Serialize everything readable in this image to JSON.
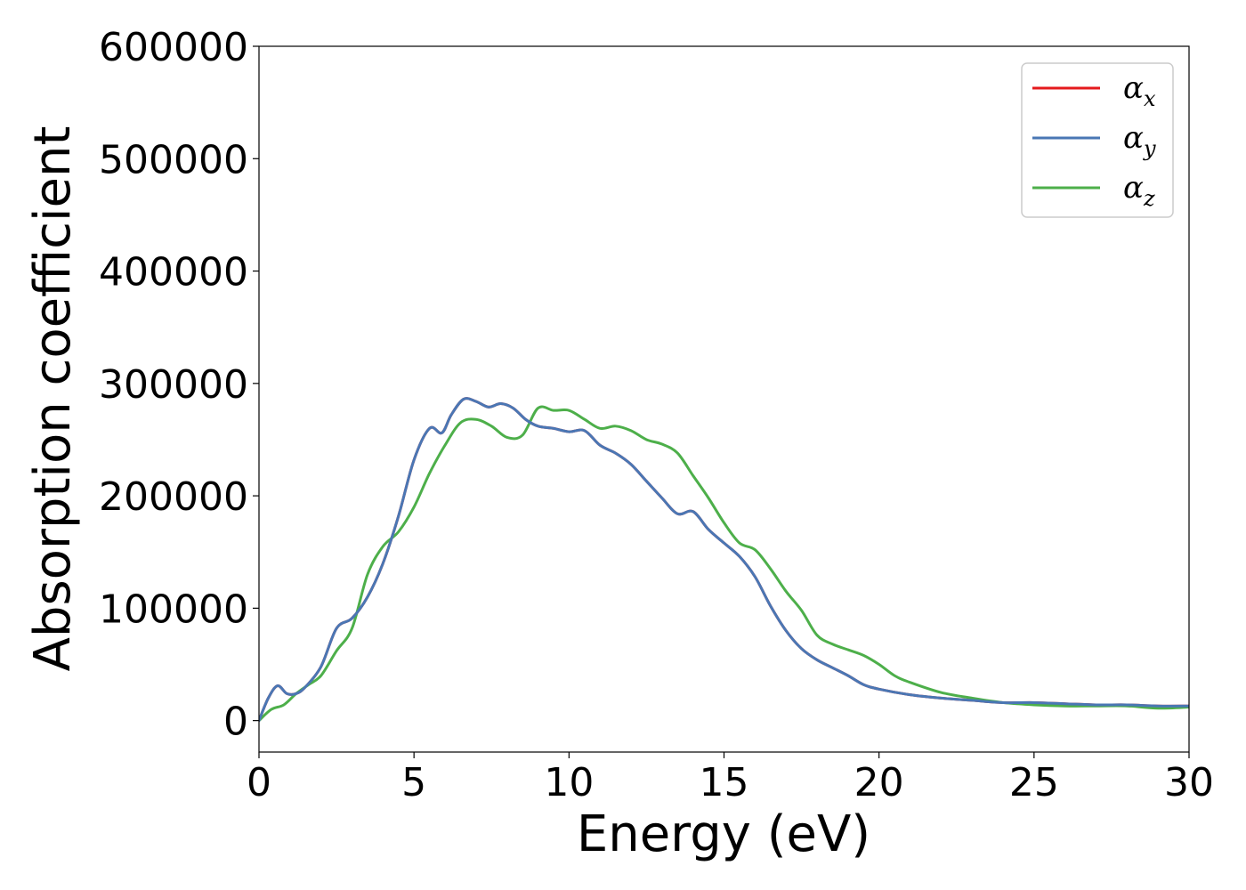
{
  "chart_data": {
    "type": "line",
    "title": "",
    "xlabel": "Energy (eV)",
    "ylabel": "Absorption coefficient",
    "xlim": [
      0,
      30
    ],
    "ylim": [
      -28000,
      600000
    ],
    "x_ticks": [
      0,
      5,
      10,
      15,
      20,
      25,
      30
    ],
    "y_ticks": [
      0,
      100000,
      200000,
      300000,
      400000,
      500000,
      600000
    ],
    "grid": false,
    "legend_position": "top-right",
    "series": [
      {
        "name": "α_x",
        "legend_base": "α",
        "legend_sub": "x",
        "color": "#e41a1c",
        "x": [
          0,
          0.3,
          0.6,
          0.9,
          1.2,
          1.5,
          2,
          2.5,
          3,
          3.5,
          4,
          4.5,
          5,
          5.5,
          5.9,
          6.2,
          6.6,
          7,
          7.4,
          7.8,
          8.2,
          8.6,
          9,
          9.5,
          10,
          10.5,
          11,
          11.5,
          12,
          12.5,
          13,
          13.5,
          14,
          14.5,
          15,
          15.5,
          16,
          16.5,
          17,
          17.5,
          18,
          18.5,
          19,
          19.5,
          20,
          21,
          22,
          23,
          24,
          25,
          26,
          27,
          28,
          29,
          30
        ],
        "y": [
          0,
          20000,
          31000,
          24000,
          24000,
          30000,
          48000,
          82000,
          91000,
          110000,
          140000,
          182000,
          232000,
          260000,
          256000,
          272000,
          286000,
          284000,
          279000,
          282000,
          278000,
          268000,
          262000,
          260000,
          257000,
          258000,
          245000,
          238000,
          228000,
          213000,
          198000,
          184000,
          186000,
          170000,
          158000,
          146000,
          128000,
          102000,
          80000,
          64000,
          54000,
          47000,
          40000,
          32000,
          28000,
          23000,
          20000,
          18000,
          16000,
          16000,
          15000,
          14000,
          14000,
          13000,
          13000
        ]
      },
      {
        "name": "α_y",
        "legend_base": "α",
        "legend_sub": "y",
        "color": "#4a77b4",
        "x": [
          0,
          0.3,
          0.6,
          0.9,
          1.2,
          1.5,
          2,
          2.5,
          3,
          3.5,
          4,
          4.5,
          5,
          5.5,
          5.9,
          6.2,
          6.6,
          7,
          7.4,
          7.8,
          8.2,
          8.6,
          9,
          9.5,
          10,
          10.5,
          11,
          11.5,
          12,
          12.5,
          13,
          13.5,
          14,
          14.5,
          15,
          15.5,
          16,
          16.5,
          17,
          17.5,
          18,
          18.5,
          19,
          19.5,
          20,
          21,
          22,
          23,
          24,
          25,
          26,
          27,
          28,
          29,
          30
        ],
        "y": [
          0,
          20000,
          31000,
          24000,
          24000,
          30000,
          48000,
          82000,
          91000,
          110000,
          140000,
          182000,
          232000,
          260000,
          256000,
          272000,
          286000,
          284000,
          279000,
          282000,
          278000,
          268000,
          262000,
          260000,
          257000,
          258000,
          245000,
          238000,
          228000,
          213000,
          198000,
          184000,
          186000,
          170000,
          158000,
          146000,
          128000,
          102000,
          80000,
          64000,
          54000,
          47000,
          40000,
          32000,
          28000,
          23000,
          20000,
          18000,
          16000,
          16000,
          15000,
          14000,
          14000,
          13000,
          13000
        ]
      },
      {
        "name": "α_z",
        "legend_base": "α",
        "legend_sub": "z",
        "color": "#4daf4a",
        "x": [
          0,
          0.4,
          0.8,
          1.2,
          1.6,
          2,
          2.5,
          3,
          3.5,
          4,
          4.5,
          5,
          5.5,
          6,
          6.5,
          7,
          7.5,
          8,
          8.5,
          9,
          9.5,
          10,
          10.5,
          11,
          11.5,
          12,
          12.5,
          13,
          13.5,
          14,
          14.5,
          15,
          15.5,
          16,
          16.5,
          17,
          17.5,
          18,
          18.5,
          19,
          19.5,
          20,
          20.5,
          21,
          22,
          23,
          24,
          25,
          26,
          27,
          28,
          29,
          30
        ],
        "y": [
          0,
          10000,
          14000,
          24000,
          32000,
          40000,
          62000,
          82000,
          130000,
          155000,
          168000,
          190000,
          220000,
          245000,
          265000,
          268000,
          262000,
          252000,
          254000,
          278000,
          276000,
          276000,
          268000,
          260000,
          262000,
          258000,
          250000,
          246000,
          238000,
          218000,
          198000,
          176000,
          158000,
          152000,
          135000,
          115000,
          98000,
          76000,
          68000,
          63000,
          58000,
          50000,
          40000,
          34000,
          25000,
          20000,
          16000,
          14000,
          13000,
          13000,
          13000,
          11000,
          12000
        ]
      }
    ]
  }
}
